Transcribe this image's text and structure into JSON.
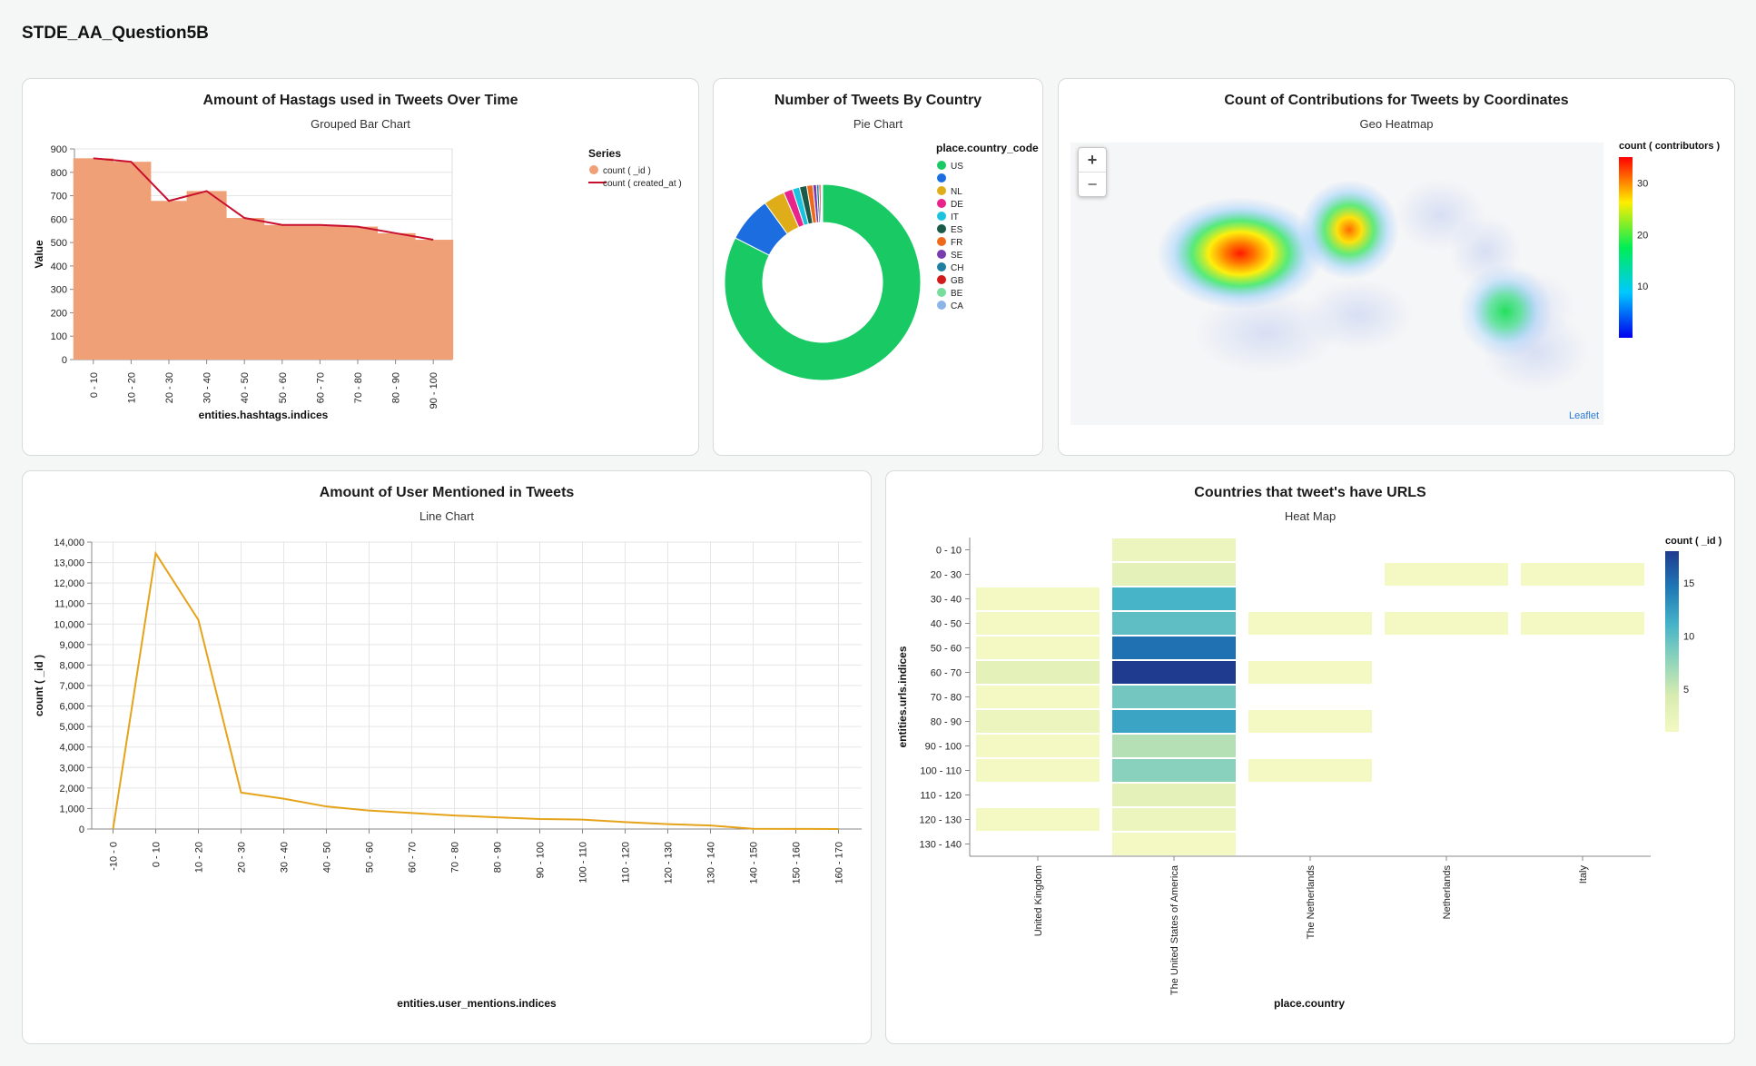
{
  "dashboard": {
    "title": "STDE_AA_Question5B"
  },
  "charts": {
    "hashtags": {
      "title": "Amount of Hastags used in Tweets Over Time",
      "subtitle": "Grouped Bar Chart"
    },
    "country_pie": {
      "title": "Number of Tweets By Country",
      "subtitle": "Pie Chart"
    },
    "geo": {
      "title": "Count of Contributions for Tweets by Coordinates",
      "subtitle": "Geo Heatmap",
      "zoom_in": "+",
      "zoom_out": "−",
      "attribution": "Leaflet"
    },
    "mentions": {
      "title": "Amount of User Mentioned in Tweets",
      "subtitle": "Line Chart"
    },
    "urls": {
      "title": "Countries that tweet's have URLS",
      "subtitle": "Heat Map"
    }
  },
  "chart_data": [
    {
      "id": "hashtags",
      "type": "bar",
      "categories": [
        "0 - 10",
        "10 - 20",
        "20 - 30",
        "30 - 40",
        "40 - 50",
        "50 - 60",
        "60 - 70",
        "70 - 80",
        "80 - 90",
        "90 - 100"
      ],
      "series": [
        {
          "name": "count ( _id )",
          "kind": "bar",
          "color": "#f0a077",
          "values": [
            860,
            845,
            678,
            720,
            605,
            575,
            575,
            568,
            540,
            512
          ]
        },
        {
          "name": "count ( created_at )",
          "kind": "line",
          "color": "#c8102e",
          "values": [
            860,
            845,
            678,
            720,
            605,
            575,
            575,
            568,
            540,
            512
          ]
        }
      ],
      "xlabel": "entities.hashtags.indices",
      "ylabel": "Value",
      "ylim": [
        0,
        900
      ],
      "yticks": [
        0,
        100,
        200,
        300,
        400,
        500,
        600,
        700,
        800,
        900
      ],
      "legend_title": "Series",
      "legend_position": "right",
      "grid": true
    },
    {
      "id": "country_pie",
      "type": "pie",
      "donut": true,
      "legend_title": "place.country_code",
      "legend_position": "right",
      "slices": [
        {
          "label": "US",
          "value": 82.5,
          "color": "#19c964"
        },
        {
          "label": "",
          "value": 7.5,
          "color": "#1c6ee0"
        },
        {
          "label": "NL",
          "value": 3.5,
          "color": "#e0ad1a"
        },
        {
          "label": "DE",
          "value": 1.5,
          "color": "#e8238c"
        },
        {
          "label": "IT",
          "value": 1.2,
          "color": "#1bc3df"
        },
        {
          "label": "ES",
          "value": 1.2,
          "color": "#1c5a48"
        },
        {
          "label": "FR",
          "value": 1.0,
          "color": "#ee6a1a"
        },
        {
          "label": "SE",
          "value": 0.6,
          "color": "#7a3ab0"
        },
        {
          "label": "CH",
          "value": 0.4,
          "color": "#1f7fa0"
        },
        {
          "label": "GB",
          "value": 0.3,
          "color": "#d01c1c"
        },
        {
          "label": "BE",
          "value": 0.2,
          "color": "#76dd9c"
        },
        {
          "label": "CA",
          "value": 0.1,
          "color": "#8db4e8"
        }
      ]
    },
    {
      "id": "geo",
      "type": "heatmap",
      "kind": "geo",
      "legend_title": "count ( contributors )",
      "legend_position": "right",
      "color_scale": [
        "#0000ee",
        "#00c8ff",
        "#00ee55",
        "#ffee00",
        "#ff0000"
      ],
      "legend_ticks": [
        10,
        20,
        30
      ]
    },
    {
      "id": "mentions",
      "type": "line",
      "categories": [
        "-10 - 0",
        "0 - 10",
        "10 - 20",
        "20 - 30",
        "30 - 40",
        "40 - 50",
        "50 - 60",
        "60 - 70",
        "70 - 80",
        "80 - 90",
        "90 - 100",
        "100 - 110",
        "110 - 120",
        "120 - 130",
        "130 - 140",
        "140 - 150",
        "150 - 160",
        "160 - 170"
      ],
      "series": [
        {
          "name": "count ( _id )",
          "color": "#e5a31a",
          "values": [
            0,
            13450,
            10200,
            1780,
            1480,
            1100,
            900,
            780,
            660,
            570,
            490,
            460,
            340,
            240,
            170,
            10,
            5,
            0
          ]
        }
      ],
      "xlabel": "entities.user_mentions.indices",
      "ylabel": "count ( _id )",
      "ylim": [
        0,
        14000
      ],
      "yticks": [
        0,
        1000,
        2000,
        3000,
        4000,
        5000,
        6000,
        7000,
        8000,
        9000,
        10000,
        11000,
        12000,
        13000,
        14000
      ],
      "ytick_labels": [
        "0",
        "1,000",
        "2,000",
        "3,000",
        "4,000",
        "5,000",
        "6,000",
        "7,000",
        "8,000",
        "9,000",
        "10,000",
        "11,000",
        "12,000",
        "13,000",
        "14,000"
      ],
      "grid": true
    },
    {
      "id": "urls",
      "type": "heatmap",
      "x": [
        "United Kingdom",
        "The United States of America",
        "The Netherlands",
        "Netherlands",
        "Italy"
      ],
      "y": [
        "0 - 10",
        "20 - 30",
        "30 - 40",
        "40 - 50",
        "50 - 60",
        "60 - 70",
        "70 - 80",
        "80 - 90",
        "90 - 100",
        "100 - 110",
        "110 - 120",
        "120 - 130",
        "130 - 140"
      ],
      "values": [
        [
          null,
          2,
          null,
          null,
          null
        ],
        [
          null,
          3,
          null,
          1,
          1
        ],
        [
          1,
          11,
          null,
          null,
          null
        ],
        [
          1,
          10,
          1,
          1,
          1
        ],
        [
          1,
          15,
          null,
          null,
          null
        ],
        [
          3,
          18,
          1,
          null,
          null
        ],
        [
          1,
          9,
          null,
          null,
          null
        ],
        [
          2,
          12,
          1,
          null,
          null
        ],
        [
          1,
          6,
          null,
          null,
          null
        ],
        [
          1,
          8,
          1,
          null,
          null
        ],
        [
          null,
          3,
          null,
          null,
          null
        ],
        [
          1,
          2,
          null,
          null,
          null
        ],
        [
          null,
          1,
          null,
          null,
          null
        ]
      ],
      "xlabel": "place.country",
      "ylabel": "entities.urls.indices",
      "legend_title": "count ( _id )",
      "legend_ticks": [
        5,
        10,
        15
      ],
      "value_range": [
        1,
        18
      ],
      "color_scale": [
        "#f4f9c3",
        "#d8ecb0",
        "#8dd3bc",
        "#44b2c8",
        "#1f78b6",
        "#1f3b8f"
      ]
    }
  ]
}
